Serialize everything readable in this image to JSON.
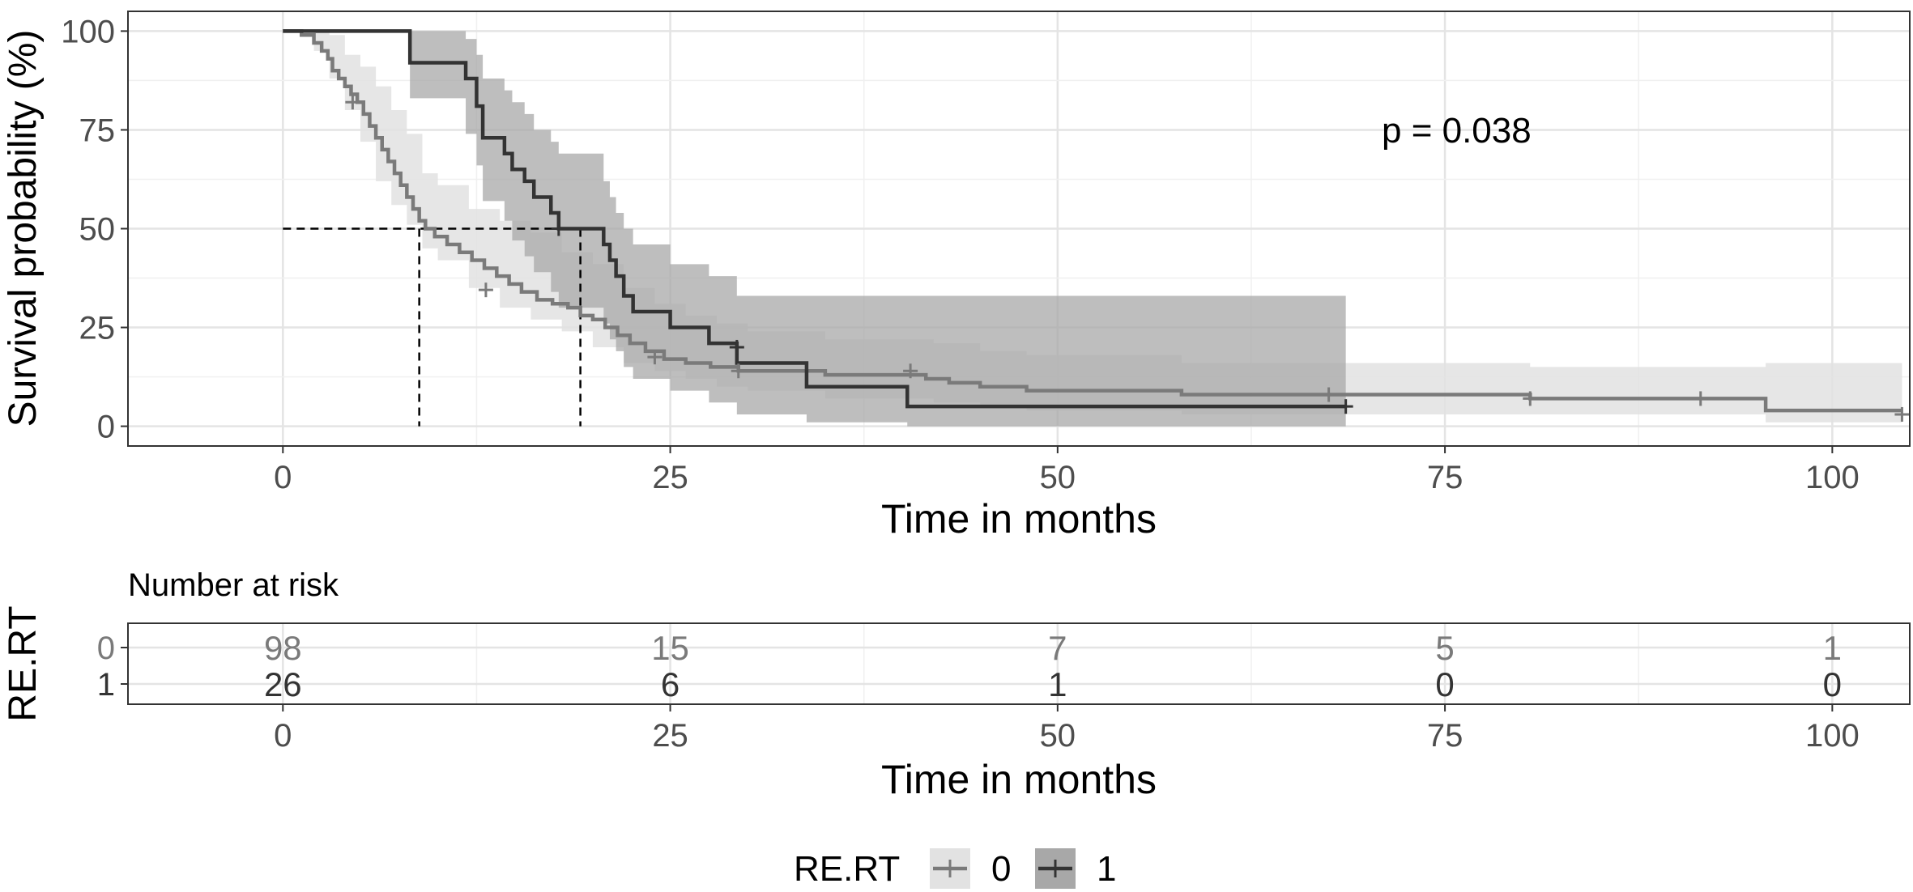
{
  "chart_data": [
    {
      "type": "line",
      "subtype": "kaplan-meier",
      "xlabel": "Time in months",
      "ylabel": "Survival probability (%)",
      "xlim": [
        -10,
        105
      ],
      "ylim": [
        -5,
        105
      ],
      "x_ticks": [
        0,
        25,
        50,
        75,
        100
      ],
      "y_ticks": [
        0,
        25,
        50,
        75,
        100
      ],
      "x_tick_labels": [
        "0",
        "25",
        "50",
        "75",
        "100"
      ],
      "y_tick_labels": [
        "0",
        "25",
        "50",
        "75",
        "100"
      ],
      "grid": true,
      "annotation": "p = 0.038",
      "annotation_pos": [
        72,
        75
      ],
      "median_lines": [
        8.8,
        19.2
      ],
      "series": [
        {
          "name": "0",
          "color": "#7a7a7a",
          "band_color": "#e2e2e2",
          "steps": [
            [
              0,
              100
            ],
            [
              1.2,
              99
            ],
            [
              2,
              97
            ],
            [
              2.5,
              95
            ],
            [
              2.9,
              93
            ],
            [
              3.2,
              90
            ],
            [
              3.6,
              88
            ],
            [
              4,
              86
            ],
            [
              4.4,
              84
            ],
            [
              4.8,
              82
            ],
            [
              5.2,
              79
            ],
            [
              5.6,
              76
            ],
            [
              6,
              73
            ],
            [
              6.4,
              70
            ],
            [
              6.8,
              67
            ],
            [
              7.2,
              64
            ],
            [
              7.6,
              61
            ],
            [
              8,
              58
            ],
            [
              8.4,
              55
            ],
            [
              8.8,
              52
            ],
            [
              9.2,
              50
            ],
            [
              9.8,
              48
            ],
            [
              10.6,
              46
            ],
            [
              11.4,
              44
            ],
            [
              12.2,
              42
            ],
            [
              13,
              40
            ],
            [
              13.8,
              38
            ],
            [
              14.6,
              36
            ],
            [
              15.4,
              34
            ],
            [
              16.4,
              32
            ],
            [
              17.4,
              31
            ],
            [
              18.4,
              30
            ],
            [
              19.2,
              28
            ],
            [
              20,
              27
            ],
            [
              20.8,
              25
            ],
            [
              21.6,
              23
            ],
            [
              22.4,
              21
            ],
            [
              23.4,
              19
            ],
            [
              24.6,
              17
            ],
            [
              26,
              16
            ],
            [
              27.6,
              15
            ],
            [
              29.4,
              14
            ],
            [
              35,
              13
            ],
            [
              41.5,
              12
            ],
            [
              43,
              11
            ],
            [
              45,
              10
            ],
            [
              48,
              9
            ],
            [
              58,
              8
            ],
            [
              80.5,
              7
            ],
            [
              95.7,
              4
            ],
            [
              104.5,
              4
            ]
          ],
          "upper": [
            [
              0,
              100
            ],
            [
              2,
              100
            ],
            [
              3,
              99
            ],
            [
              4,
              94
            ],
            [
              5,
              91
            ],
            [
              6,
              86
            ],
            [
              7,
              80
            ],
            [
              8,
              74
            ],
            [
              9,
              64
            ],
            [
              10,
              61
            ],
            [
              12,
              55
            ],
            [
              14,
              52
            ],
            [
              16,
              49
            ],
            [
              18,
              44
            ],
            [
              20,
              41
            ],
            [
              22,
              35
            ],
            [
              24,
              31
            ],
            [
              26,
              28
            ],
            [
              28,
              26
            ],
            [
              30,
              24
            ],
            [
              35,
              22
            ],
            [
              42,
              21
            ],
            [
              45,
              19
            ],
            [
              48,
              18
            ],
            [
              58,
              16
            ],
            [
              80.5,
              15
            ],
            [
              95.7,
              16
            ],
            [
              104.5,
              16
            ]
          ],
          "lower": [
            [
              0,
              100
            ],
            [
              2,
              95
            ],
            [
              3,
              88
            ],
            [
              4,
              80
            ],
            [
              5,
              72
            ],
            [
              6,
              62
            ],
            [
              7,
              56
            ],
            [
              8,
              51
            ],
            [
              9,
              45
            ],
            [
              10,
              42
            ],
            [
              12,
              35
            ],
            [
              14,
              30
            ],
            [
              16,
              27
            ],
            [
              18,
              24
            ],
            [
              20,
              20
            ],
            [
              22,
              16
            ],
            [
              24,
              14
            ],
            [
              26,
              12
            ],
            [
              28,
              10
            ],
            [
              30,
              9
            ],
            [
              35,
              7
            ],
            [
              42,
              6
            ],
            [
              45,
              5
            ],
            [
              48,
              4
            ],
            [
              58,
              3
            ],
            [
              80.5,
              3
            ],
            [
              95.7,
              1
            ],
            [
              104.5,
              1
            ]
          ],
          "censors": [
            [
              4.5,
              82
            ],
            [
              13.1,
              34.5
            ],
            [
              24,
              17.5
            ],
            [
              29.4,
              14
            ],
            [
              40.5,
              14
            ],
            [
              67.5,
              8
            ],
            [
              80.5,
              7
            ],
            [
              91.5,
              7
            ],
            [
              104.5,
              3
            ]
          ]
        },
        {
          "name": "1",
          "color": "#333333",
          "band_color": "#a8a8a8",
          "steps": [
            [
              0,
              100
            ],
            [
              8,
              100
            ],
            [
              8.2,
              92
            ],
            [
              11.8,
              88
            ],
            [
              12.5,
              81
            ],
            [
              12.9,
              73
            ],
            [
              14.3,
              69
            ],
            [
              14.8,
              65
            ],
            [
              15.6,
              62
            ],
            [
              16.2,
              58
            ],
            [
              17.3,
              54
            ],
            [
              17.8,
              50
            ],
            [
              20.7,
              46
            ],
            [
              21.1,
              42
            ],
            [
              21.5,
              38
            ],
            [
              22,
              33
            ],
            [
              22.6,
              29
            ],
            [
              25,
              25
            ],
            [
              27.5,
              21
            ],
            [
              29.3,
              16
            ],
            [
              33.8,
              10
            ],
            [
              40.3,
              5
            ],
            [
              68.6,
              5
            ]
          ],
          "upper": [
            [
              0,
              100
            ],
            [
              8.2,
              100
            ],
            [
              11.8,
              98
            ],
            [
              12.5,
              94
            ],
            [
              12.9,
              88
            ],
            [
              14.3,
              85
            ],
            [
              14.8,
              82
            ],
            [
              15.6,
              79
            ],
            [
              16.2,
              75
            ],
            [
              17.3,
              72
            ],
            [
              17.8,
              69
            ],
            [
              20.7,
              62
            ],
            [
              21.1,
              58
            ],
            [
              21.5,
              54
            ],
            [
              22,
              50
            ],
            [
              22.6,
              46
            ],
            [
              25,
              41
            ],
            [
              27.5,
              38
            ],
            [
              29.3,
              33
            ],
            [
              33.8,
              33
            ],
            [
              40.3,
              33
            ],
            [
              68.6,
              33
            ]
          ],
          "lower": [
            [
              0,
              100
            ],
            [
              8.2,
              83
            ],
            [
              11.8,
              74
            ],
            [
              12.5,
              66
            ],
            [
              12.9,
              57
            ],
            [
              14.3,
              52
            ],
            [
              14.8,
              47
            ],
            [
              15.6,
              43
            ],
            [
              16.2,
              39
            ],
            [
              17.3,
              34
            ],
            [
              17.8,
              30
            ],
            [
              20.7,
              26
            ],
            [
              21.1,
              22
            ],
            [
              21.5,
              19
            ],
            [
              22,
              15
            ],
            [
              22.6,
              12
            ],
            [
              25,
              9
            ],
            [
              27.5,
              6
            ],
            [
              29.3,
              3
            ],
            [
              33.8,
              1
            ],
            [
              40.3,
              0
            ],
            [
              68.6,
              0
            ]
          ],
          "censors": [
            [
              17.8,
              50
            ],
            [
              29.3,
              20
            ],
            [
              68.6,
              5
            ]
          ]
        }
      ]
    },
    {
      "type": "table",
      "title": "Number at risk",
      "xlabel": "Time in months",
      "ylabel": "RE.RT",
      "x_ticks": [
        0,
        25,
        50,
        75,
        100
      ],
      "x_tick_labels": [
        "0",
        "25",
        "50",
        "75",
        "100"
      ],
      "rows": [
        {
          "label": "0",
          "color": "#7a7a7a",
          "values": [
            "98",
            "15",
            "7",
            "5",
            "1"
          ]
        },
        {
          "label": "1",
          "color": "#333333",
          "values": [
            "26",
            "6",
            "1",
            "0",
            "0"
          ]
        }
      ]
    }
  ],
  "legend": {
    "title": "RE.RT",
    "entries": [
      {
        "label": "0",
        "color": "#7a7a7a",
        "fill": "#e2e2e2"
      },
      {
        "label": "1",
        "color": "#333333",
        "fill": "#a8a8a8"
      }
    ]
  }
}
